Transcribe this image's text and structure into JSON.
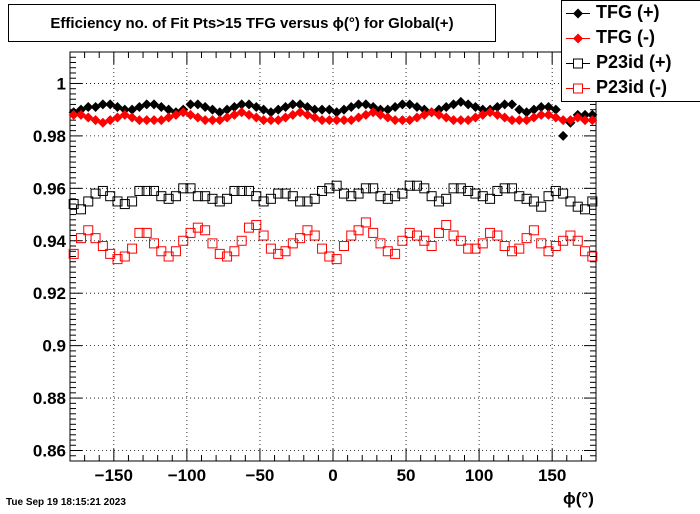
{
  "chart_data": {
    "type": "scatter",
    "title": "Efficiency no. of Fit Pts>15 TFG versus ϕ(°) for Global(+)",
    "xlabel": "ϕ(°)",
    "ylabel": "",
    "xlim": [
      -180,
      180
    ],
    "ylim": [
      0.856,
      1.012
    ],
    "xticks": [
      -150,
      -100,
      -50,
      0,
      50,
      100,
      150
    ],
    "xtick_labels": [
      "−150",
      "−100",
      "−50",
      "0",
      "50",
      "100",
      "150"
    ],
    "yticks": [
      0.86,
      0.88,
      0.9,
      0.92,
      0.94,
      0.96,
      0.98,
      1
    ],
    "ytick_labels": [
      "0.86",
      "0.88",
      "0.9",
      "0.92",
      "0.94",
      "0.96",
      "0.98",
      "1"
    ],
    "grid": true,
    "legend_position": "top-right",
    "series": [
      {
        "name": "TFG (+)",
        "color": "#000000",
        "marker": "filled-circle",
        "x": [
          -177.5,
          -172.5,
          -167.5,
          -162.5,
          -157.5,
          -152.5,
          -147.5,
          -142.5,
          -137.5,
          -132.5,
          -127.5,
          -122.5,
          -117.5,
          -112.5,
          -107.5,
          -102.5,
          -97.5,
          -92.5,
          -87.5,
          -82.5,
          -77.5,
          -72.5,
          -67.5,
          -62.5,
          -57.5,
          -52.5,
          -47.5,
          -42.5,
          -37.5,
          -32.5,
          -27.5,
          -22.5,
          -17.5,
          -12.5,
          -7.5,
          -2.5,
          2.5,
          7.5,
          12.5,
          17.5,
          22.5,
          27.5,
          32.5,
          37.5,
          42.5,
          47.5,
          52.5,
          57.5,
          62.5,
          67.5,
          72.5,
          77.5,
          82.5,
          87.5,
          92.5,
          97.5,
          102.5,
          107.5,
          112.5,
          117.5,
          122.5,
          127.5,
          132.5,
          137.5,
          142.5,
          147.5,
          152.5,
          157.5,
          162.5,
          167.5,
          172.5,
          177.5
        ],
        "y": [
          0.989,
          0.99,
          0.991,
          0.991,
          0.992,
          0.992,
          0.991,
          0.99,
          0.99,
          0.991,
          0.992,
          0.992,
          0.991,
          0.99,
          0.989,
          0.99,
          0.992,
          0.992,
          0.991,
          0.99,
          0.989,
          0.99,
          0.991,
          0.992,
          0.992,
          0.991,
          0.99,
          0.989,
          0.99,
          0.991,
          0.992,
          0.992,
          0.991,
          0.99,
          0.99,
          0.99,
          0.989,
          0.99,
          0.991,
          0.992,
          0.992,
          0.991,
          0.99,
          0.99,
          0.991,
          0.992,
          0.992,
          0.991,
          0.99,
          0.989,
          0.99,
          0.991,
          0.992,
          0.993,
          0.992,
          0.991,
          0.99,
          0.99,
          0.991,
          0.992,
          0.992,
          0.99,
          0.989,
          0.99,
          0.991,
          0.991,
          0.99,
          0.98,
          0.985,
          0.988,
          0.988,
          0.988
        ]
      },
      {
        "name": "TFG (-)",
        "color": "#ff0000",
        "marker": "filled-circle",
        "x": [
          -177.5,
          -172.5,
          -167.5,
          -162.5,
          -157.5,
          -152.5,
          -147.5,
          -142.5,
          -137.5,
          -132.5,
          -127.5,
          -122.5,
          -117.5,
          -112.5,
          -107.5,
          -102.5,
          -97.5,
          -92.5,
          -87.5,
          -82.5,
          -77.5,
          -72.5,
          -67.5,
          -62.5,
          -57.5,
          -52.5,
          -47.5,
          -42.5,
          -37.5,
          -32.5,
          -27.5,
          -22.5,
          -17.5,
          -12.5,
          -7.5,
          -2.5,
          2.5,
          7.5,
          12.5,
          17.5,
          22.5,
          27.5,
          32.5,
          37.5,
          42.5,
          47.5,
          52.5,
          57.5,
          62.5,
          67.5,
          72.5,
          77.5,
          82.5,
          87.5,
          92.5,
          97.5,
          102.5,
          107.5,
          112.5,
          117.5,
          122.5,
          127.5,
          132.5,
          137.5,
          142.5,
          147.5,
          152.5,
          157.5,
          162.5,
          167.5,
          172.5,
          177.5
        ],
        "y": [
          0.988,
          0.988,
          0.987,
          0.986,
          0.985,
          0.986,
          0.987,
          0.988,
          0.987,
          0.986,
          0.986,
          0.986,
          0.986,
          0.987,
          0.988,
          0.989,
          0.988,
          0.987,
          0.986,
          0.986,
          0.986,
          0.987,
          0.988,
          0.989,
          0.988,
          0.987,
          0.986,
          0.986,
          0.986,
          0.987,
          0.988,
          0.989,
          0.988,
          0.987,
          0.986,
          0.986,
          0.986,
          0.986,
          0.986,
          0.987,
          0.988,
          0.989,
          0.988,
          0.987,
          0.986,
          0.986,
          0.986,
          0.987,
          0.988,
          0.989,
          0.988,
          0.987,
          0.986,
          0.986,
          0.986,
          0.987,
          0.988,
          0.989,
          0.988,
          0.987,
          0.986,
          0.986,
          0.986,
          0.987,
          0.988,
          0.988,
          0.987,
          0.986,
          0.986,
          0.987,
          0.986,
          0.986
        ]
      },
      {
        "name": "P23id (+)",
        "color": "#000000",
        "marker": "open-square",
        "x": [
          -177.5,
          -172.5,
          -167.5,
          -162.5,
          -157.5,
          -152.5,
          -147.5,
          -142.5,
          -137.5,
          -132.5,
          -127.5,
          -122.5,
          -117.5,
          -112.5,
          -107.5,
          -102.5,
          -97.5,
          -92.5,
          -87.5,
          -82.5,
          -77.5,
          -72.5,
          -67.5,
          -62.5,
          -57.5,
          -52.5,
          -47.5,
          -42.5,
          -37.5,
          -32.5,
          -27.5,
          -22.5,
          -17.5,
          -12.5,
          -7.5,
          -2.5,
          2.5,
          7.5,
          12.5,
          17.5,
          22.5,
          27.5,
          32.5,
          37.5,
          42.5,
          47.5,
          52.5,
          57.5,
          62.5,
          67.5,
          72.5,
          77.5,
          82.5,
          87.5,
          92.5,
          97.5,
          102.5,
          107.5,
          112.5,
          117.5,
          122.5,
          127.5,
          132.5,
          137.5,
          142.5,
          147.5,
          152.5,
          157.5,
          162.5,
          167.5,
          172.5,
          177.5
        ],
        "y": [
          0.954,
          0.952,
          0.955,
          0.958,
          0.959,
          0.957,
          0.955,
          0.954,
          0.955,
          0.959,
          0.959,
          0.959,
          0.957,
          0.956,
          0.957,
          0.96,
          0.96,
          0.957,
          0.957,
          0.956,
          0.955,
          0.956,
          0.959,
          0.959,
          0.959,
          0.957,
          0.955,
          0.956,
          0.958,
          0.958,
          0.957,
          0.955,
          0.955,
          0.956,
          0.959,
          0.96,
          0.961,
          0.958,
          0.957,
          0.958,
          0.96,
          0.96,
          0.957,
          0.956,
          0.957,
          0.958,
          0.961,
          0.961,
          0.96,
          0.957,
          0.955,
          0.956,
          0.96,
          0.96,
          0.959,
          0.958,
          0.957,
          0.956,
          0.959,
          0.96,
          0.96,
          0.957,
          0.956,
          0.955,
          0.953,
          0.957,
          0.959,
          0.958,
          0.955,
          0.953,
          0.952,
          0.955
        ]
      },
      {
        "name": "P23id (-)",
        "color": "#ff0000",
        "marker": "open-square",
        "x": [
          -177.5,
          -172.5,
          -167.5,
          -162.5,
          -157.5,
          -152.5,
          -147.5,
          -142.5,
          -137.5,
          -132.5,
          -127.5,
          -122.5,
          -117.5,
          -112.5,
          -107.5,
          -102.5,
          -97.5,
          -92.5,
          -87.5,
          -82.5,
          -77.5,
          -72.5,
          -67.5,
          -62.5,
          -57.5,
          -52.5,
          -47.5,
          -42.5,
          -37.5,
          -32.5,
          -27.5,
          -22.5,
          -17.5,
          -12.5,
          -7.5,
          -2.5,
          2.5,
          7.5,
          12.5,
          17.5,
          22.5,
          27.5,
          32.5,
          37.5,
          42.5,
          47.5,
          52.5,
          57.5,
          62.5,
          67.5,
          72.5,
          77.5,
          82.5,
          87.5,
          92.5,
          97.5,
          102.5,
          107.5,
          112.5,
          117.5,
          122.5,
          127.5,
          132.5,
          137.5,
          142.5,
          147.5,
          152.5,
          157.5,
          162.5,
          167.5,
          172.5,
          177.5
        ],
        "y": [
          0.935,
          0.941,
          0.944,
          0.941,
          0.938,
          0.935,
          0.933,
          0.934,
          0.937,
          0.943,
          0.943,
          0.939,
          0.936,
          0.934,
          0.936,
          0.94,
          0.943,
          0.945,
          0.944,
          0.939,
          0.935,
          0.934,
          0.936,
          0.94,
          0.945,
          0.946,
          0.942,
          0.937,
          0.935,
          0.936,
          0.939,
          0.941,
          0.944,
          0.942,
          0.937,
          0.934,
          0.933,
          0.938,
          0.942,
          0.944,
          0.947,
          0.943,
          0.939,
          0.936,
          0.935,
          0.94,
          0.943,
          0.942,
          0.94,
          0.938,
          0.943,
          0.946,
          0.942,
          0.94,
          0.937,
          0.937,
          0.939,
          0.943,
          0.942,
          0.938,
          0.936,
          0.937,
          0.941,
          0.944,
          0.939,
          0.936,
          0.938,
          0.94,
          0.942,
          0.94,
          0.936,
          0.934
        ]
      }
    ]
  },
  "timestamp": "Tue Sep 19 18:15:21 2023"
}
